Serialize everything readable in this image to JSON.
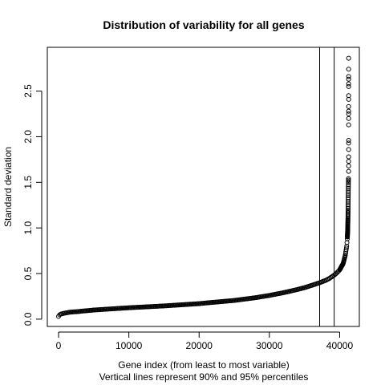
{
  "chart_data": {
    "type": "scatter",
    "title": "Distribution of variability for all genes",
    "xlabel_line1": "Gene index (from least to most variable)",
    "xlabel_line2": "Vertical lines represent 90% and 95% percentiles",
    "ylabel": "Standard deviation",
    "xlim": [
      -1600,
      42800
    ],
    "ylim": [
      -0.08,
      2.98
    ],
    "x_ticks": [
      0,
      10000,
      20000,
      30000,
      40000
    ],
    "x_tick_labels": [
      "0",
      "10000",
      "20000",
      "30000",
      "40000"
    ],
    "y_ticks": [
      0.0,
      0.5,
      1.0,
      1.5,
      2.0,
      2.5
    ],
    "y_tick_labels": [
      "0.0",
      "0.5",
      "1.0",
      "1.5",
      "2.0",
      "2.5"
    ],
    "vlines": [
      {
        "name": "90% percentile",
        "x": 37150
      },
      {
        "name": "95% percentile",
        "x": 39220
      }
    ],
    "n_points": 41300,
    "curve_points": [
      [
        0,
        0.03
      ],
      [
        100,
        0.045
      ],
      [
        300,
        0.055
      ],
      [
        800,
        0.065
      ],
      [
        1500,
        0.075
      ],
      [
        3000,
        0.085
      ],
      [
        5000,
        0.1
      ],
      [
        10000,
        0.125
      ],
      [
        15000,
        0.145
      ],
      [
        20000,
        0.17
      ],
      [
        25000,
        0.205
      ],
      [
        28000,
        0.235
      ],
      [
        30000,
        0.26
      ],
      [
        32000,
        0.29
      ],
      [
        34000,
        0.325
      ],
      [
        35000,
        0.345
      ],
      [
        36000,
        0.37
      ],
      [
        37000,
        0.395
      ],
      [
        37500,
        0.41
      ],
      [
        38000,
        0.425
      ],
      [
        38500,
        0.445
      ],
      [
        39000,
        0.47
      ],
      [
        39500,
        0.5
      ],
      [
        40000,
        0.54
      ],
      [
        40500,
        0.61
      ],
      [
        40800,
        0.7
      ],
      [
        41000,
        0.8
      ],
      [
        41100,
        0.9
      ],
      [
        41150,
        1.0
      ],
      [
        41180,
        1.1
      ],
      [
        41200,
        1.2
      ],
      [
        41215,
        1.3
      ],
      [
        41230,
        1.4
      ],
      [
        41245,
        1.5
      ],
      [
        41255,
        1.55
      ]
    ],
    "top_points": [
      [
        41280,
        1.62
      ],
      [
        41280,
        1.68
      ],
      [
        41280,
        1.73
      ],
      [
        41280,
        1.78
      ],
      [
        41280,
        1.86
      ],
      [
        41280,
        1.93
      ],
      [
        41280,
        1.96
      ],
      [
        41280,
        2.13
      ],
      [
        41280,
        2.2
      ],
      [
        41280,
        2.25
      ],
      [
        41280,
        2.28
      ],
      [
        41280,
        2.33
      ],
      [
        41280,
        2.41
      ],
      [
        41280,
        2.45
      ],
      [
        41280,
        2.55
      ],
      [
        41280,
        2.58
      ],
      [
        41280,
        2.63
      ],
      [
        41280,
        2.66
      ],
      [
        41280,
        2.74
      ],
      [
        41280,
        2.86
      ]
    ],
    "marker": "open-circle",
    "point_color": "#000000",
    "grid": false,
    "legend": "none"
  }
}
